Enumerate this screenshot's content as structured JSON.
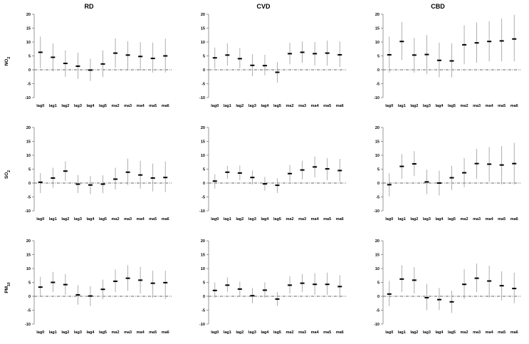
{
  "columns": [
    "RD",
    "CVD",
    "CBD"
  ],
  "rows": [
    {
      "label": "NO",
      "sub": "2"
    },
    {
      "label": "SO",
      "sub": "2"
    },
    {
      "label": "PM",
      "sub": "10"
    }
  ],
  "chart_data": [
    {
      "type": "scatter",
      "panel": "NO2-RD",
      "categories": [
        "lag0",
        "lag1",
        "lag2",
        "lag3",
        "lag4",
        "lag5",
        "ma2",
        "ma3",
        "ma4",
        "ma5",
        "ma6"
      ],
      "ylim": [
        -10,
        20
      ],
      "yticks": [
        -10,
        -5,
        0,
        5,
        10,
        15,
        20
      ],
      "estimate": [
        6.3,
        4.5,
        2.3,
        1.3,
        -0.1,
        2.1,
        6.0,
        5.3,
        4.8,
        4.1,
        5.0
      ],
      "lower": [
        0.5,
        -0.5,
        -2.5,
        -3.3,
        -4.0,
        -2.6,
        0.7,
        0.2,
        -0.3,
        -1.0,
        -1.0
      ],
      "upper": [
        12.0,
        9.5,
        7.0,
        6.2,
        4.0,
        7.0,
        11.3,
        10.3,
        10.0,
        9.8,
        11.2
      ]
    },
    {
      "type": "scatter",
      "panel": "NO2-CVD",
      "categories": [
        "lag0",
        "lag1",
        "lag2",
        "lag3",
        "lag4",
        "lag5",
        "ma2",
        "ma3",
        "ma4",
        "ma5",
        "ma6"
      ],
      "ylim": [
        -10,
        20
      ],
      "yticks": [
        -10,
        -5,
        0,
        5,
        10,
        15,
        20
      ],
      "estimate": [
        4.3,
        5.3,
        4.0,
        1.6,
        1.5,
        -0.9,
        5.8,
        6.3,
        5.8,
        6.0,
        5.4
      ],
      "lower": [
        0.5,
        1.5,
        0.5,
        -2.3,
        -2.0,
        -4.6,
        2.0,
        2.5,
        1.5,
        1.5,
        1.0
      ],
      "upper": [
        8.0,
        9.5,
        7.8,
        5.6,
        5.4,
        2.8,
        9.7,
        10.2,
        10.0,
        10.5,
        10.2
      ]
    },
    {
      "type": "scatter",
      "panel": "NO2-CBD",
      "categories": [
        "lag0",
        "lag1",
        "lag2",
        "lag3",
        "lag4",
        "lag5",
        "ma2",
        "ma3",
        "ma4",
        "ma5",
        "ma6"
      ],
      "ylim": [
        -10,
        20
      ],
      "yticks": [
        -10,
        -5,
        0,
        5,
        10,
        15,
        20
      ],
      "estimate": [
        5.4,
        10.2,
        5.3,
        5.5,
        3.4,
        3.2,
        9.0,
        9.7,
        10.2,
        10.4,
        11.1
      ],
      "lower": [
        -1.0,
        3.5,
        -1.0,
        -1.5,
        -2.7,
        -2.8,
        2.0,
        2.5,
        3.0,
        3.0,
        3.0
      ],
      "upper": [
        12.0,
        17.2,
        11.5,
        12.5,
        9.8,
        9.5,
        16.0,
        17.0,
        17.5,
        18.5,
        19.8
      ]
    },
    {
      "type": "scatter",
      "panel": "SO2-RD",
      "categories": [
        "lag0",
        "lag1",
        "lag2",
        "lag3",
        "lag4",
        "lag5",
        "ma2",
        "ma3",
        "ma4",
        "ma5",
        "ma6"
      ],
      "ylim": [
        -10,
        20
      ],
      "yticks": [
        -10,
        -5,
        0,
        5,
        10,
        15,
        20
      ],
      "estimate": [
        0.3,
        1.8,
        4.3,
        -0.4,
        -0.7,
        -0.4,
        1.4,
        3.9,
        2.9,
        1.8,
        2.0
      ],
      "lower": [
        -3.6,
        -1.7,
        0.8,
        -3.6,
        -4.0,
        -3.7,
        -2.3,
        -0.7,
        -2.0,
        -3.0,
        -3.3
      ],
      "upper": [
        3.6,
        5.5,
        7.8,
        2.9,
        2.5,
        2.8,
        5.5,
        8.8,
        8.0,
        7.0,
        7.8
      ]
    },
    {
      "type": "scatter",
      "panel": "SO2-CVD",
      "categories": [
        "lag0",
        "lag1",
        "lag2",
        "lag3",
        "lag4",
        "lag5",
        "ma2",
        "ma3",
        "ma4",
        "ma5",
        "ma6"
      ],
      "ylim": [
        -10,
        20
      ],
      "yticks": [
        -10,
        -5,
        0,
        5,
        10,
        15,
        20
      ],
      "estimate": [
        0.7,
        3.9,
        3.6,
        2.0,
        -0.3,
        -0.8,
        3.4,
        4.7,
        5.8,
        5.1,
        4.5
      ],
      "lower": [
        -2.0,
        1.5,
        1.0,
        -0.5,
        -2.7,
        -3.6,
        0.5,
        1.3,
        2.0,
        1.0,
        0.5
      ],
      "upper": [
        3.2,
        6.2,
        6.3,
        4.5,
        2.2,
        1.7,
        6.5,
        8.0,
        9.6,
        9.0,
        8.7
      ]
    },
    {
      "type": "scatter",
      "panel": "SO2-CBD",
      "categories": [
        "lag0",
        "lag1",
        "lag2",
        "lag3",
        "lag4",
        "lag5",
        "ma2",
        "ma3",
        "ma4",
        "ma5",
        "ma6"
      ],
      "ylim": [
        -10,
        20
      ],
      "yticks": [
        -10,
        -5,
        0,
        5,
        10,
        15,
        20
      ],
      "estimate": [
        -0.6,
        6.0,
        6.9,
        0.4,
        0.0,
        1.9,
        3.7,
        7.0,
        6.8,
        6.5,
        7.0
      ],
      "lower": [
        -4.8,
        1.5,
        2.5,
        -4.0,
        -4.5,
        -2.5,
        -1.5,
        1.5,
        0.5,
        -0.5,
        -0.5
      ],
      "upper": [
        3.5,
        10.5,
        11.5,
        4.8,
        4.5,
        6.2,
        9.0,
        12.3,
        13.0,
        13.3,
        14.5
      ]
    },
    {
      "type": "scatter",
      "panel": "PM10-RD",
      "categories": [
        "lag0",
        "lag1",
        "lag2",
        "lag3",
        "lag4",
        "lag5",
        "ma2",
        "ma3",
        "ma4",
        "ma5",
        "ma6"
      ],
      "ylim": [
        -10,
        20
      ],
      "yticks": [
        -10,
        -5,
        0,
        5,
        10,
        15,
        20
      ],
      "estimate": [
        3.3,
        5.0,
        4.2,
        0.5,
        0.1,
        2.5,
        5.4,
        6.5,
        5.8,
        4.7,
        4.9
      ],
      "lower": [
        0.0,
        1.5,
        0.5,
        -3.0,
        -3.5,
        -1.0,
        1.5,
        2.0,
        1.0,
        -0.5,
        -1.0
      ],
      "upper": [
        7.0,
        8.8,
        8.0,
        4.0,
        3.6,
        6.0,
        9.6,
        11.2,
        10.6,
        9.2,
        9.2
      ]
    },
    {
      "type": "scatter",
      "panel": "PM10-CVD",
      "categories": [
        "lag0",
        "lag1",
        "lag2",
        "lag3",
        "lag4",
        "lag5",
        "ma2",
        "ma3",
        "ma4",
        "ma5",
        "ma6"
      ],
      "ylim": [
        -10,
        20
      ],
      "yticks": [
        -10,
        -5,
        0,
        5,
        10,
        15,
        20
      ],
      "estimate": [
        2.1,
        4.0,
        2.6,
        0.2,
        2.2,
        -1.0,
        4.0,
        4.7,
        4.3,
        4.3,
        3.5
      ],
      "lower": [
        -0.5,
        1.5,
        0.0,
        -2.5,
        -0.5,
        -3.5,
        1.0,
        1.5,
        0.5,
        0.5,
        -0.5
      ],
      "upper": [
        5.0,
        6.8,
        5.3,
        3.0,
        5.0,
        1.5,
        7.2,
        8.0,
        8.3,
        8.5,
        7.6
      ]
    },
    {
      "type": "scatter",
      "panel": "PM10-CBD",
      "categories": [
        "lag0",
        "lag1",
        "lag2",
        "lag3",
        "lag4",
        "lag5",
        "ma2",
        "ma3",
        "ma4",
        "ma5",
        "ma6"
      ],
      "ylim": [
        -10,
        20
      ],
      "yticks": [
        -10,
        -5,
        0,
        5,
        10,
        15,
        20
      ],
      "estimate": [
        0.8,
        6.2,
        5.8,
        -0.5,
        -1.2,
        -2.0,
        4.3,
        6.5,
        5.5,
        3.8,
        2.8
      ],
      "lower": [
        -3.5,
        1.5,
        1.0,
        -5.0,
        -5.0,
        -6.0,
        -1.0,
        1.5,
        -0.5,
        -1.5,
        -2.5
      ],
      "upper": [
        5.5,
        11.2,
        10.5,
        4.5,
        3.0,
        2.0,
        9.8,
        11.8,
        11.0,
        9.0,
        8.5
      ]
    }
  ]
}
